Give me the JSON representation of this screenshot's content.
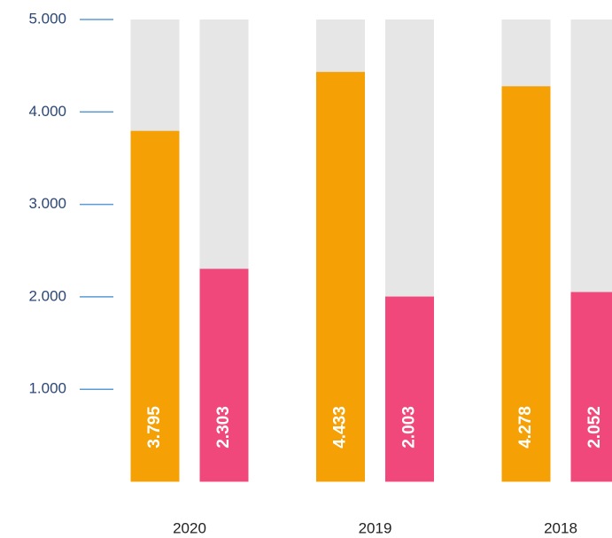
{
  "chart_data": {
    "type": "bar",
    "categories": [
      "2020",
      "2019",
      "2018"
    ],
    "series": [
      {
        "color": "#f5a005",
        "values": [
          3795,
          4433,
          4278
        ],
        "value_labels": [
          "3.795",
          "4.433",
          "4.278"
        ]
      },
      {
        "color": "#f0487a",
        "values": [
          2303,
          2003,
          2052
        ],
        "value_labels": [
          "2.303",
          "2.003",
          "2.052"
        ]
      }
    ],
    "ylim": [
      0,
      5000
    ],
    "yticks": [
      {
        "value": 1000,
        "label": "1.000"
      },
      {
        "value": 2000,
        "label": "2.000"
      },
      {
        "value": 3000,
        "label": "3.000"
      },
      {
        "value": 4000,
        "label": "4.000"
      },
      {
        "value": 5000,
        "label": "5.000"
      }
    ],
    "track_color": "#e6e6e6"
  }
}
